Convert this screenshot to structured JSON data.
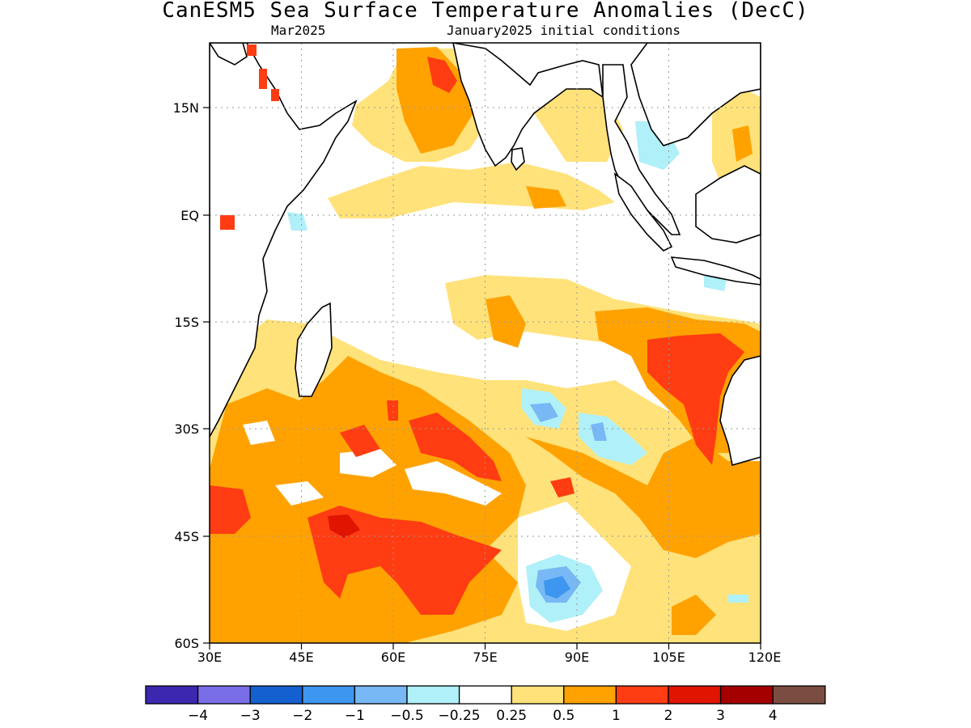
{
  "title": "CanESM5 Sea Surface Temperature Anomalies (DecC)",
  "subtitle_left": "Mar2025",
  "subtitle_right": "January2025 initial conditions",
  "axes": {
    "x_ticks": [
      "30E",
      "45E",
      "60E",
      "75E",
      "90E",
      "105E",
      "120E"
    ],
    "y_ticks": [
      "15N",
      "EQ",
      "15S",
      "30S",
      "45S",
      "60S"
    ],
    "lon_range": [
      30,
      120
    ],
    "lat_range": [
      24,
      -60
    ],
    "grid": true
  },
  "colorbar": {
    "colors": [
      "#3c28b0",
      "#7a6ee8",
      "#1560d0",
      "#3d96f0",
      "#78b8f5",
      "#b0f0f8",
      "#ffffff",
      "#ffe27a",
      "#ffa200",
      "#ff3c12",
      "#e01400",
      "#a50000",
      "#7b4d42"
    ],
    "labels": [
      "−4",
      "−3",
      "−2",
      "−1",
      "−0.5",
      "−0.25",
      "0.25",
      "0.5",
      "1",
      "2",
      "3",
      "4"
    ]
  },
  "legend_colors": {
    "light_yellow": "#ffe27a",
    "orange": "#ffa200",
    "red_orange": "#ff3c12",
    "dark_red": "#e01400",
    "light_cyan": "#b0f0f8",
    "light_blue": "#78b8f5",
    "blue": "#3d96f0"
  }
}
